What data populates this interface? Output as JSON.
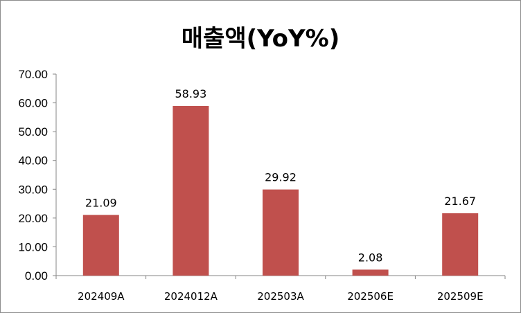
{
  "chart_data": {
    "type": "bar",
    "title": "매출액(YoY%)",
    "categories": [
      "202409A",
      "2024012A",
      "202503A",
      "202506E",
      "202509E"
    ],
    "series": [
      {
        "values": [
          21.09,
          58.93,
          29.92,
          2.08,
          21.67
        ]
      }
    ],
    "data_labels": [
      "21.09",
      "58.93",
      "29.92",
      "2.08",
      "21.67"
    ],
    "y_ticks": [
      "0.00",
      "10.00",
      "20.00",
      "30.00",
      "40.00",
      "50.00",
      "60.00",
      "70.00"
    ],
    "ylim": [
      0,
      70
    ],
    "grid": false,
    "legend": "none",
    "bar_color": "#c0504d"
  }
}
